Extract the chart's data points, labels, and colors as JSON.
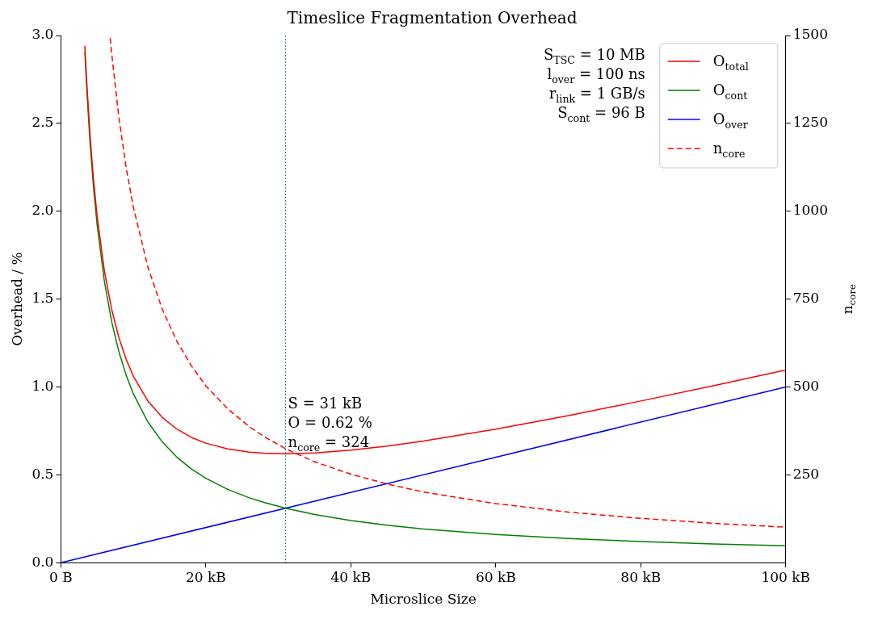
{
  "chart_data": {
    "type": "line",
    "title": "Timeslice Fragmentation Overhead",
    "xlabel": "Microslice Size",
    "ylabel": "Overhead / %",
    "y2label": "n$_{core}$",
    "xlim": [
      0,
      100
    ],
    "xticks": [
      {
        "value": 0,
        "label": "0 B"
      },
      {
        "value": 20,
        "label": "20 kB"
      },
      {
        "value": 40,
        "label": "40 kB"
      },
      {
        "value": 60,
        "label": "60 kB"
      },
      {
        "value": 80,
        "label": "80 kB"
      },
      {
        "value": 100,
        "label": "100 kB"
      }
    ],
    "ylim": [
      0,
      3
    ],
    "yticks": [
      {
        "value": 0,
        "label": "0.0"
      },
      0.5,
      {
        "value": 1,
        "label": "1.0"
      },
      1.5,
      {
        "value": 2,
        "label": "2.0"
      },
      2.5,
      {
        "value": 3,
        "label": "3.0"
      }
    ],
    "y2lim": [
      0,
      1500
    ],
    "y2ticks": [
      250,
      500,
      750,
      1000,
      1250,
      1500
    ],
    "grid": false,
    "legend": "top right",
    "marker": "none",
    "series": [
      {
        "name": "O$_{total}$",
        "color": "#ff0000",
        "x": [
          3.3,
          3.5,
          4,
          4.5,
          5,
          6,
          7,
          8,
          9,
          10,
          12,
          14,
          16,
          18,
          20,
          23,
          26,
          28,
          31,
          35,
          40,
          45,
          50,
          60,
          70,
          80,
          90,
          100
        ],
        "values": [
          2.942,
          2.778,
          2.44,
          2.178,
          1.97,
          1.66,
          1.441,
          1.28,
          1.157,
          1.06,
          0.92,
          0.826,
          0.76,
          0.713,
          0.68,
          0.647,
          0.629,
          0.623,
          0.62,
          0.624,
          0.64,
          0.663,
          0.692,
          0.76,
          0.837,
          0.92,
          1.007,
          1.096
        ]
      },
      {
        "name": "O$_{cont}$",
        "color": "#008000",
        "x": [
          3.3,
          3.5,
          4,
          4.5,
          5,
          6,
          7,
          8,
          9,
          10,
          12,
          14,
          16,
          18,
          20,
          23,
          26,
          28,
          31,
          35,
          40,
          45,
          50,
          60,
          70,
          80,
          90,
          100
        ],
        "values": [
          2.909,
          2.743,
          2.4,
          2.133,
          1.92,
          1.6,
          1.371,
          1.2,
          1.067,
          0.96,
          0.8,
          0.686,
          0.6,
          0.533,
          0.48,
          0.417,
          0.369,
          0.343,
          0.31,
          0.274,
          0.24,
          0.213,
          0.192,
          0.16,
          0.137,
          0.12,
          0.107,
          0.096
        ]
      },
      {
        "name": "O$_{over}$",
        "color": "#0000ff",
        "x": [
          0,
          100
        ],
        "values": [
          0,
          1
        ]
      },
      {
        "name": "n$_{core}$",
        "color": "#ff0000",
        "line_style": "dashed",
        "axis": "y2",
        "x": [
          6.8,
          7,
          8,
          9,
          10,
          12,
          14,
          16,
          18,
          20,
          23,
          26,
          28,
          31,
          35,
          40,
          45,
          50,
          60,
          70,
          80,
          90,
          100
        ],
        "values": [
          1493,
          1449,
          1266,
          1124,
          1011,
          841,
          720,
          630,
          560,
          503,
          438,
          387,
          359,
          324,
          287,
          252,
          224,
          201,
          168,
          144,
          126,
          112,
          101
        ]
      }
    ],
    "ref_lines": [
      {
        "axis": "x",
        "value": 31,
        "color": "#1f77b4",
        "line_style": "dotted"
      }
    ],
    "annotations": [
      "S$_{TSC}$ = 10 MB",
      "l$_{over}$ = 100 ns",
      "r$_{link}$ = 1 GB/s",
      "S$_{cont}$ = 96 B",
      {
        "text": "S = 31 kB\nO = 0.62 %\nn$_{core}$ = 324",
        "x": 31,
        "y": 0.62
      }
    ]
  }
}
